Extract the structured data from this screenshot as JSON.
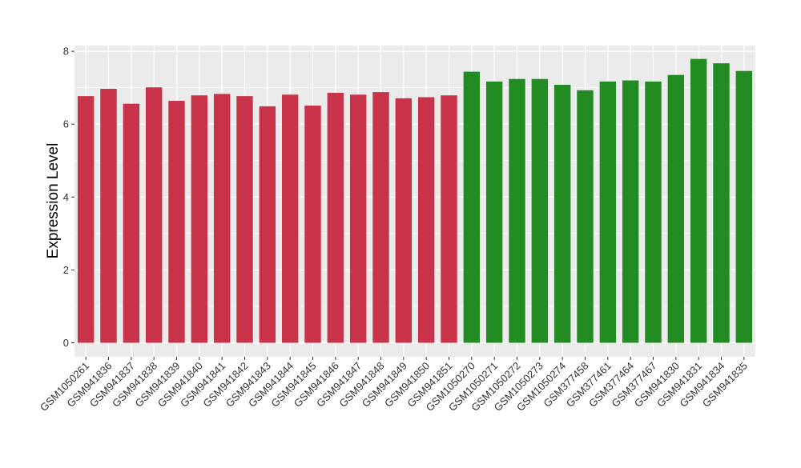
{
  "chart_data": {
    "type": "bar",
    "title": "",
    "xlabel": "",
    "ylabel": "Expression Level",
    "ylim": [
      0,
      8.3
    ],
    "yticks": [
      0,
      2,
      4,
      6,
      8
    ],
    "grid": true,
    "legend": "none",
    "colors": {
      "group_red": "#C8334A",
      "group_green": "#228B22",
      "panel_bg": "#EBEBEB",
      "grid": "#FFFFFF"
    },
    "categories": [
      "GSM1050261",
      "GSM941836",
      "GSM941837",
      "GSM941838",
      "GSM941839",
      "GSM941840",
      "GSM941841",
      "GSM941842",
      "GSM941843",
      "GSM941844",
      "GSM941845",
      "GSM941846",
      "GSM941847",
      "GSM941848",
      "GSM941849",
      "GSM941850",
      "GSM941851",
      "GSM1050270",
      "GSM1050271",
      "GSM1050272",
      "GSM1050273",
      "GSM1050274",
      "GSM377458",
      "GSM377461",
      "GSM377464",
      "GSM377467",
      "GSM941830",
      "GSM941831",
      "GSM941834",
      "GSM941835"
    ],
    "values": [
      6.77,
      6.97,
      6.56,
      7.01,
      6.64,
      6.79,
      6.83,
      6.77,
      6.49,
      6.81,
      6.51,
      6.86,
      6.81,
      6.88,
      6.71,
      6.74,
      6.79,
      7.44,
      7.17,
      7.24,
      7.24,
      7.08,
      6.93,
      7.17,
      7.2,
      7.17,
      7.35,
      7.79,
      7.67,
      7.46
    ],
    "groups": [
      "red",
      "red",
      "red",
      "red",
      "red",
      "red",
      "red",
      "red",
      "red",
      "red",
      "red",
      "red",
      "red",
      "red",
      "red",
      "red",
      "red",
      "green",
      "green",
      "green",
      "green",
      "green",
      "green",
      "green",
      "green",
      "green",
      "green",
      "green",
      "green",
      "green"
    ]
  }
}
